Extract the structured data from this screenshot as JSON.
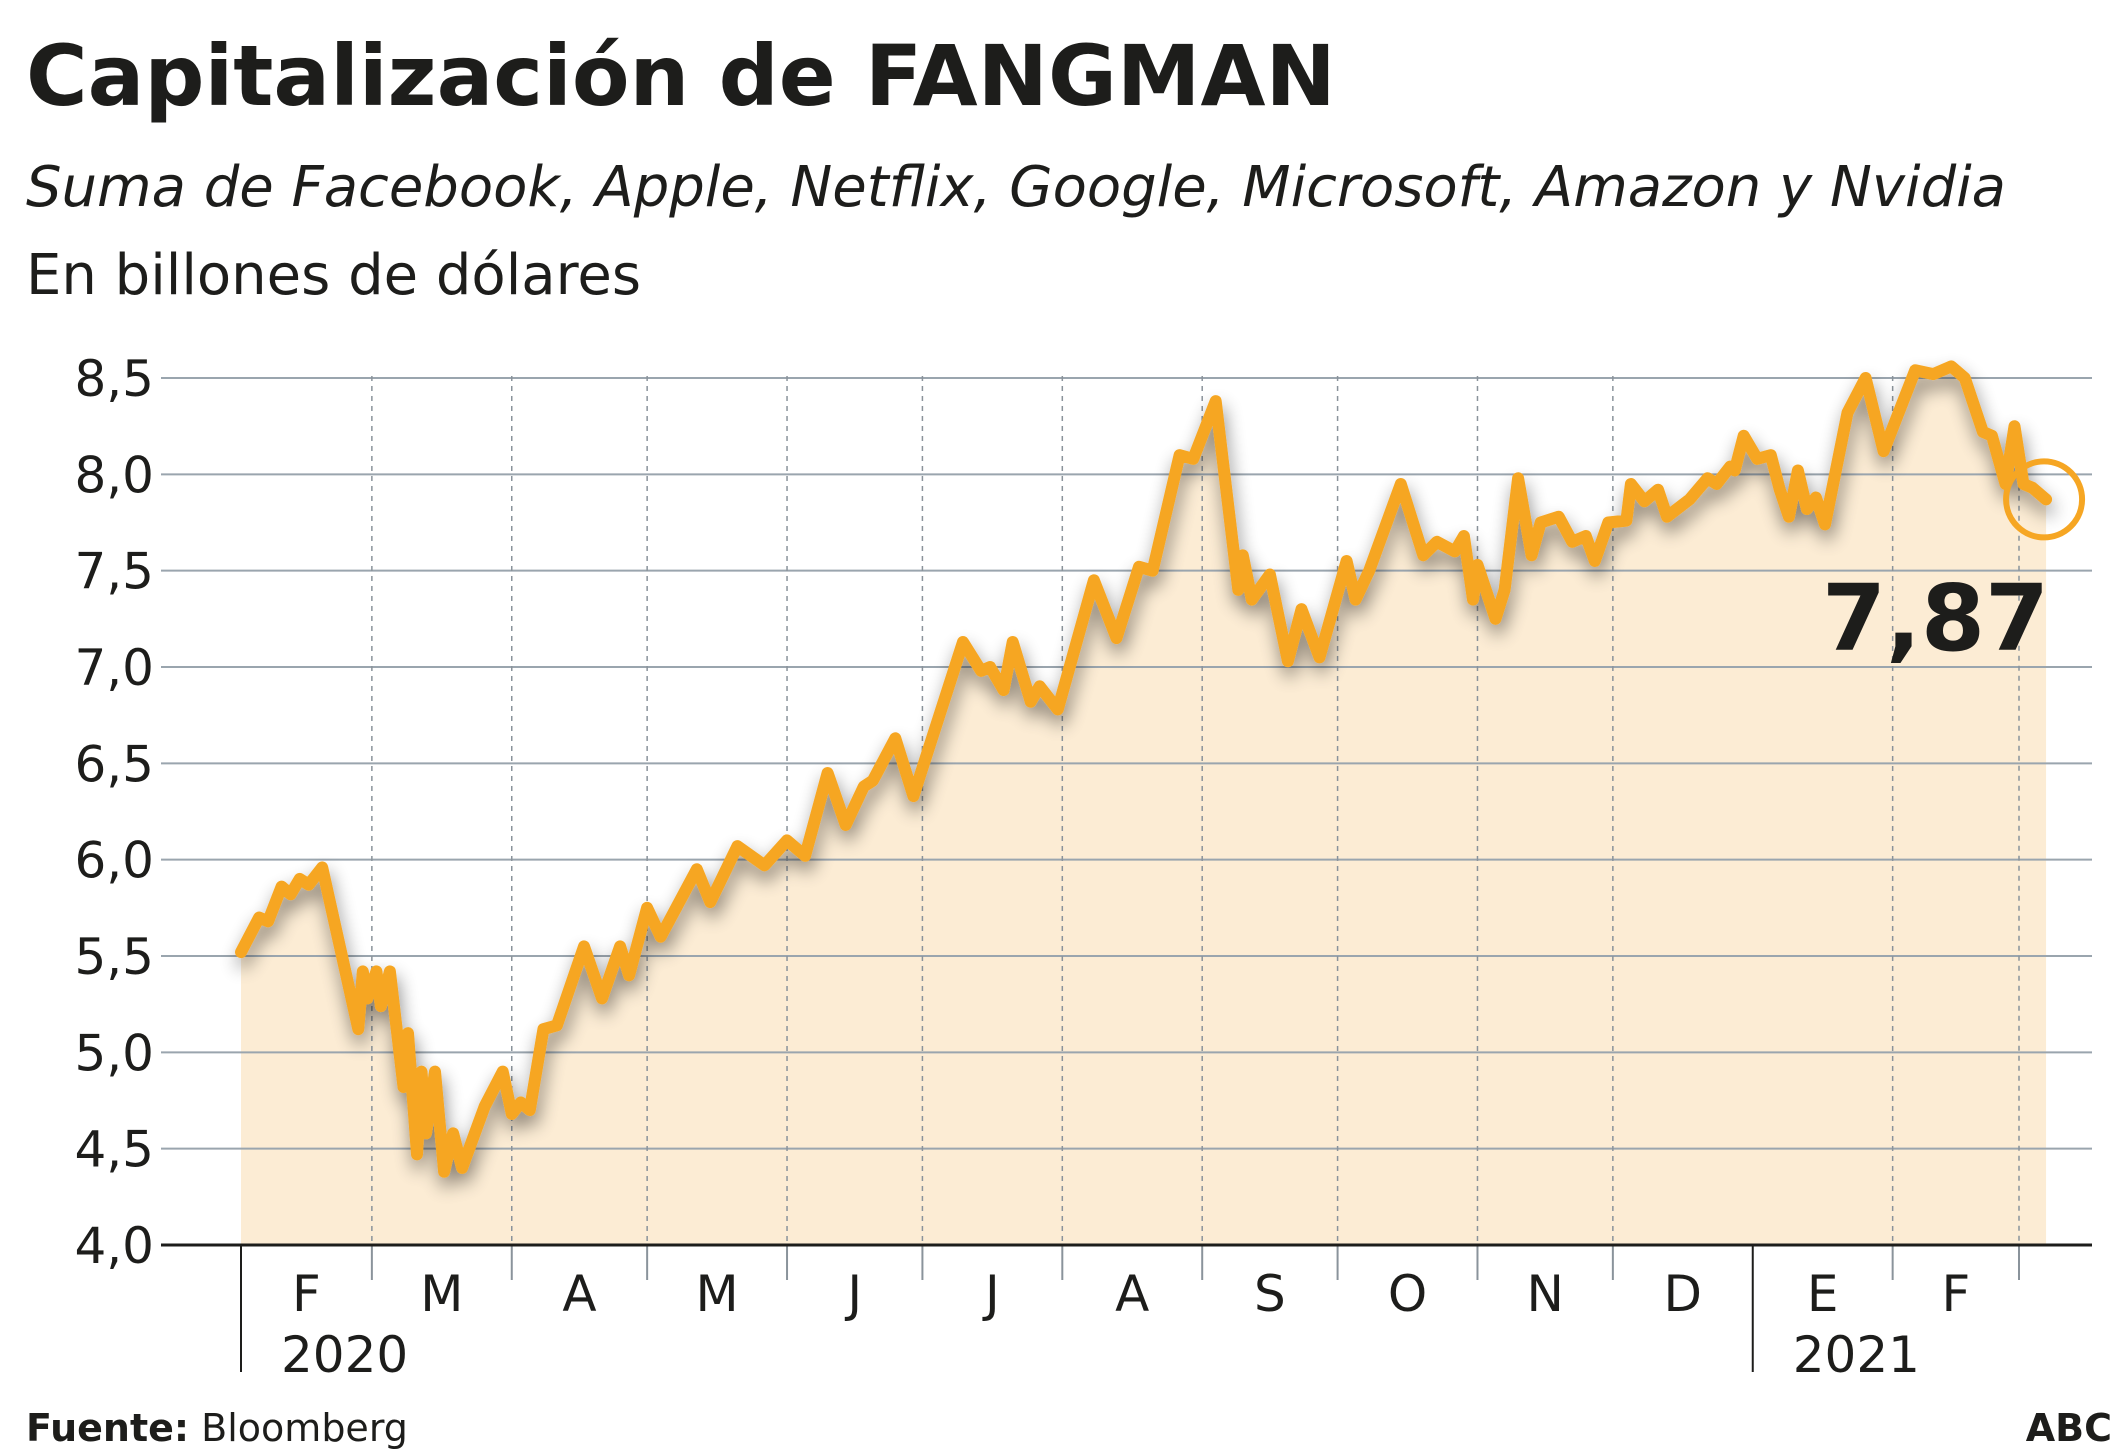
{
  "header": {
    "title": "Capitalización de FANGMAN",
    "subtitle": "Suma de Facebook, Apple, Netflix, Google, Microsoft, Amazon y Nvidia",
    "unit": "En billones de dólares"
  },
  "footer": {
    "source_label": "Fuente:",
    "source": "Bloomberg",
    "brand": "ABC"
  },
  "colors": {
    "line": "#f6a623",
    "fill": "#fcecd4",
    "grid": "#9aa5ae",
    "text": "#1d1d1b"
  },
  "chart_data": {
    "type": "area",
    "title": "Capitalización de FANGMAN",
    "subtitle": "Suma de Facebook, Apple, Netflix, Google, Microsoft, Amazon y Nvidia",
    "ylabel": "En billones de dólares",
    "ylim": [
      4.0,
      8.5
    ],
    "yticks": [
      "4,0",
      "4,5",
      "5,0",
      "5,5",
      "6,0",
      "6,5",
      "7,0",
      "7,5",
      "8,0",
      "8,5"
    ],
    "ytick_values": [
      4.0,
      4.5,
      5.0,
      5.5,
      6.0,
      6.5,
      7.0,
      7.5,
      8.0,
      8.5
    ],
    "xlim": [
      "2020-02-01",
      "2021-03-01"
    ],
    "month_ticks": [
      {
        "label": "F",
        "start": "2020-02-01",
        "end": "2020-03-01"
      },
      {
        "label": "M",
        "start": "2020-03-01",
        "end": "2020-04-01"
      },
      {
        "label": "A",
        "start": "2020-04-01",
        "end": "2020-05-01"
      },
      {
        "label": "M",
        "start": "2020-05-01",
        "end": "2020-06-01"
      },
      {
        "label": "J",
        "start": "2020-06-01",
        "end": "2020-07-01"
      },
      {
        "label": "J",
        "start": "2020-07-01",
        "end": "2020-08-01"
      },
      {
        "label": "A",
        "start": "2020-08-01",
        "end": "2020-09-01"
      },
      {
        "label": "S",
        "start": "2020-09-01",
        "end": "2020-10-01"
      },
      {
        "label": "O",
        "start": "2020-10-01",
        "end": "2020-11-01"
      },
      {
        "label": "N",
        "start": "2020-11-01",
        "end": "2020-12-01"
      },
      {
        "label": "D",
        "start": "2020-12-01",
        "end": "2021-01-01"
      },
      {
        "label": "E",
        "start": "2021-01-01",
        "end": "2021-02-01"
      },
      {
        "label": "F",
        "start": "2021-02-01",
        "end": "2021-03-01"
      }
    ],
    "year_labels": [
      {
        "label": "2020",
        "start": "2020-02-01"
      },
      {
        "label": "2021",
        "start": "2021-01-01"
      }
    ],
    "grid": true,
    "last_value_label": "7,87",
    "points": [
      [
        "2020-02-01",
        5.52
      ],
      [
        "2020-02-05",
        5.7
      ],
      [
        "2020-02-07",
        5.68
      ],
      [
        "2020-02-10",
        5.86
      ],
      [
        "2020-02-12",
        5.82
      ],
      [
        "2020-02-14",
        5.9
      ],
      [
        "2020-02-16",
        5.87
      ],
      [
        "2020-02-19",
        5.96
      ],
      [
        "2020-02-25",
        5.33
      ],
      [
        "2020-02-27",
        5.12
      ],
      [
        "2020-02-28",
        5.42
      ],
      [
        "2020-02-29",
        5.28
      ],
      [
        "2020-03-02",
        5.42
      ],
      [
        "2020-03-03",
        5.24
      ],
      [
        "2020-03-05",
        5.42
      ],
      [
        "2020-03-08",
        4.82
      ],
      [
        "2020-03-09",
        5.1
      ],
      [
        "2020-03-11",
        4.47
      ],
      [
        "2020-03-12",
        4.9
      ],
      [
        "2020-03-13",
        4.58
      ],
      [
        "2020-03-15",
        4.9
      ],
      [
        "2020-03-17",
        4.38
      ],
      [
        "2020-03-19",
        4.58
      ],
      [
        "2020-03-21",
        4.4
      ],
      [
        "2020-03-26",
        4.72
      ],
      [
        "2020-03-30",
        4.9
      ],
      [
        "2020-04-01",
        4.68
      ],
      [
        "2020-04-03",
        4.74
      ],
      [
        "2020-04-05",
        4.7
      ],
      [
        "2020-04-08",
        5.12
      ],
      [
        "2020-04-11",
        5.14
      ],
      [
        "2020-04-17",
        5.55
      ],
      [
        "2020-04-21",
        5.28
      ],
      [
        "2020-04-25",
        5.55
      ],
      [
        "2020-04-27",
        5.4
      ],
      [
        "2020-05-01",
        5.75
      ],
      [
        "2020-05-04",
        5.6
      ],
      [
        "2020-05-12",
        5.95
      ],
      [
        "2020-05-15",
        5.78
      ],
      [
        "2020-05-21",
        6.07
      ],
      [
        "2020-05-27",
        5.97
      ],
      [
        "2020-06-01",
        6.1
      ],
      [
        "2020-06-05",
        6.02
      ],
      [
        "2020-06-10",
        6.45
      ],
      [
        "2020-06-14",
        6.18
      ],
      [
        "2020-06-18",
        6.38
      ],
      [
        "2020-06-20",
        6.41
      ],
      [
        "2020-06-25",
        6.63
      ],
      [
        "2020-06-29",
        6.33
      ],
      [
        "2020-07-10",
        7.13
      ],
      [
        "2020-07-14",
        6.98
      ],
      [
        "2020-07-16",
        7.0
      ],
      [
        "2020-07-19",
        6.88
      ],
      [
        "2020-07-21",
        7.13
      ],
      [
        "2020-07-25",
        6.82
      ],
      [
        "2020-07-27",
        6.9
      ],
      [
        "2020-07-31",
        6.78
      ],
      [
        "2020-08-08",
        7.45
      ],
      [
        "2020-08-13",
        7.15
      ],
      [
        "2020-08-18",
        7.52
      ],
      [
        "2020-08-21",
        7.5
      ],
      [
        "2020-08-27",
        8.1
      ],
      [
        "2020-08-30",
        8.08
      ],
      [
        "2020-09-04",
        8.38
      ],
      [
        "2020-09-09",
        7.4
      ],
      [
        "2020-09-10",
        7.58
      ],
      [
        "2020-09-12",
        7.35
      ],
      [
        "2020-09-16",
        7.48
      ],
      [
        "2020-09-20",
        7.03
      ],
      [
        "2020-09-23",
        7.3
      ],
      [
        "2020-09-27",
        7.05
      ],
      [
        "2020-10-03",
        7.55
      ],
      [
        "2020-10-05",
        7.35
      ],
      [
        "2020-10-08",
        7.5
      ],
      [
        "2020-10-15",
        7.95
      ],
      [
        "2020-10-20",
        7.58
      ],
      [
        "2020-10-23",
        7.65
      ],
      [
        "2020-10-27",
        7.6
      ],
      [
        "2020-10-29",
        7.68
      ],
      [
        "2020-10-31",
        7.35
      ],
      [
        "2020-11-01",
        7.53
      ],
      [
        "2020-11-05",
        7.25
      ],
      [
        "2020-11-07",
        7.4
      ],
      [
        "2020-11-10",
        7.98
      ],
      [
        "2020-11-13",
        7.58
      ],
      [
        "2020-11-15",
        7.75
      ],
      [
        "2020-11-19",
        7.78
      ],
      [
        "2020-11-22",
        7.65
      ],
      [
        "2020-11-25",
        7.68
      ],
      [
        "2020-11-27",
        7.55
      ],
      [
        "2020-11-30",
        7.75
      ],
      [
        "2020-12-04",
        7.76
      ],
      [
        "2020-12-05",
        7.95
      ],
      [
        "2020-12-08",
        7.86
      ],
      [
        "2020-12-11",
        7.92
      ],
      [
        "2020-12-13",
        7.78
      ],
      [
        "2020-12-18",
        7.87
      ],
      [
        "2020-12-22",
        7.98
      ],
      [
        "2020-12-24",
        7.95
      ],
      [
        "2020-12-27",
        8.04
      ],
      [
        "2020-12-28",
        8.02
      ],
      [
        "2020-12-30",
        8.2
      ],
      [
        "2021-01-02",
        8.08
      ],
      [
        "2021-01-05",
        8.1
      ],
      [
        "2021-01-07",
        7.92
      ],
      [
        "2021-01-09",
        7.78
      ],
      [
        "2021-01-11",
        8.02
      ],
      [
        "2021-01-13",
        7.82
      ],
      [
        "2021-01-15",
        7.88
      ],
      [
        "2021-01-17",
        7.74
      ],
      [
        "2021-01-22",
        8.32
      ],
      [
        "2021-01-26",
        8.5
      ],
      [
        "2021-01-30",
        8.12
      ],
      [
        "2021-02-06",
        8.54
      ],
      [
        "2021-02-10",
        8.52
      ],
      [
        "2021-02-14",
        8.56
      ],
      [
        "2021-02-17",
        8.5
      ],
      [
        "2021-02-21",
        8.22
      ],
      [
        "2021-02-23",
        8.2
      ],
      [
        "2021-02-26",
        7.95
      ],
      [
        "2021-02-28",
        8.25
      ],
      [
        "2021-03-02",
        7.95
      ],
      [
        "2021-03-04",
        7.93
      ],
      [
        "2021-03-07",
        7.87
      ]
    ]
  }
}
